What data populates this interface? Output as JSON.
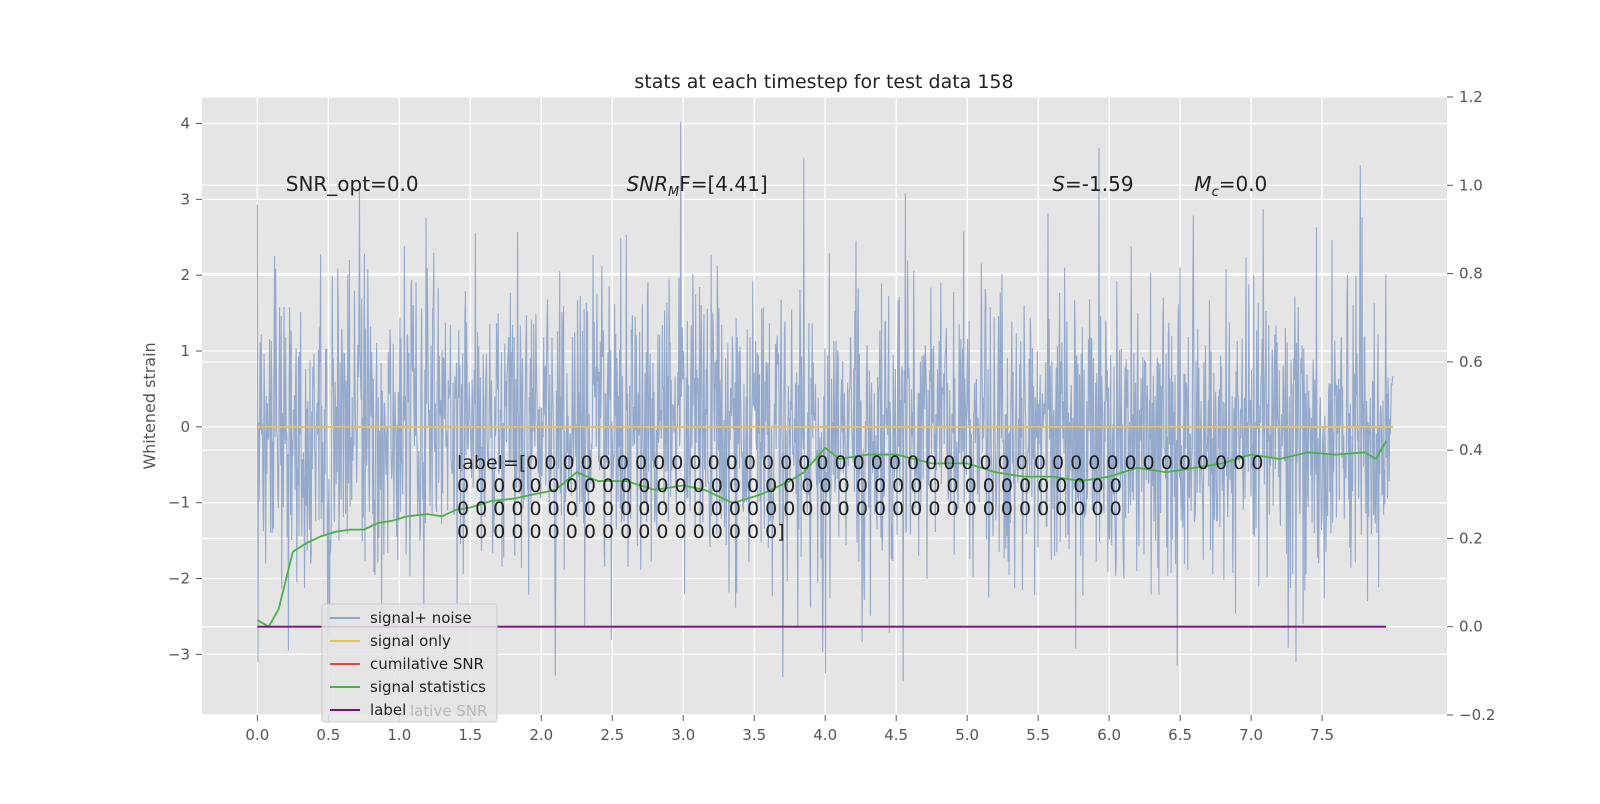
{
  "chart_data": {
    "type": "line",
    "title": "stats at each timestep for test data 158",
    "xlabel": "",
    "ylabel": "Whitened strain",
    "xlim": [
      -0.39,
      8.38
    ],
    "ylim": [
      -3.8,
      4.35
    ],
    "y2lim": [
      -0.2,
      1.2
    ],
    "xticks": [
      0.0,
      0.5,
      1.0,
      1.5,
      2.0,
      2.5,
      3.0,
      3.5,
      4.0,
      4.5,
      5.0,
      5.5,
      6.0,
      6.5,
      7.0,
      7.5
    ],
    "xtick_labels": [
      "0.0",
      "0.5",
      "1.0",
      "1.5",
      "2.0",
      "2.5",
      "3.0",
      "3.5",
      "4.0",
      "4.5",
      "5.0",
      "5.5",
      "6.0",
      "6.5",
      "7.0",
      "7.5"
    ],
    "yticks": [
      -3,
      -2,
      -1,
      0,
      1,
      2,
      3,
      4
    ],
    "ytick_labels": [
      "−3",
      "−2",
      "−1",
      "0",
      "1",
      "2",
      "3",
      "4"
    ],
    "y2ticks": [
      -0.2,
      0.0,
      0.2,
      0.4,
      0.6,
      0.8,
      1.0,
      1.2
    ],
    "y2tick_labels": [
      "−0.2",
      "0.0",
      "0.2",
      "0.4",
      "0.6",
      "0.8",
      "1.0",
      "1.2"
    ],
    "grid": true,
    "legend_position": "lower-left",
    "noise_series": {
      "name": "signal+ noise",
      "color": "#8fa5c9",
      "x_range": [
        0.0,
        8.0
      ],
      "n_points": 2048,
      "mean": 0.0,
      "std": 1.0,
      "peaks": [
        {
          "x": 0.0,
          "y": 2.93
        },
        {
          "x": 0.72,
          "y": 3.2
        },
        {
          "x": 2.98,
          "y": 4.02
        },
        {
          "x": 3.85,
          "y": 3.55
        },
        {
          "x": 5.93,
          "y": 3.68
        },
        {
          "x": 7.77,
          "y": 3.45
        },
        {
          "x": 4.55,
          "y": -3.35
        },
        {
          "x": 6.48,
          "y": -3.15
        },
        {
          "x": 4.0,
          "y": -3.25
        },
        {
          "x": 3.7,
          "y": -3.3
        },
        {
          "x": 2.1,
          "y": -3.28
        },
        {
          "x": 0.22,
          "y": -2.95
        }
      ]
    },
    "series": [
      {
        "name": "signal only",
        "color": "#e8c05a",
        "axis": "left",
        "x": [
          0.0,
          8.0
        ],
        "values": [
          0.0,
          0.0
        ]
      },
      {
        "name": "cumilative SNR",
        "color": "#e24a33",
        "axis": "right",
        "x": [],
        "values": []
      },
      {
        "name": "signal statistics",
        "color": "#4daf4a",
        "axis": "right",
        "x": [
          0.0,
          0.08,
          0.15,
          0.25,
          0.35,
          0.45,
          0.55,
          0.65,
          0.75,
          0.85,
          0.95,
          1.05,
          1.2,
          1.3,
          1.4,
          1.5,
          1.65,
          1.8,
          1.95,
          2.1,
          2.25,
          2.4,
          2.6,
          2.8,
          3.0,
          3.15,
          3.35,
          3.55,
          3.75,
          3.85,
          4.0,
          4.1,
          4.3,
          4.5,
          4.75,
          5.0,
          5.2,
          5.4,
          5.6,
          5.8,
          6.0,
          6.2,
          6.4,
          6.6,
          6.8,
          7.0,
          7.2,
          7.4,
          7.6,
          7.8,
          7.88,
          7.95
        ],
        "values": [
          0.015,
          0.0,
          0.04,
          0.17,
          0.19,
          0.205,
          0.215,
          0.22,
          0.22,
          0.235,
          0.24,
          0.25,
          0.255,
          0.25,
          0.265,
          0.27,
          0.285,
          0.29,
          0.3,
          0.31,
          0.35,
          0.33,
          0.33,
          0.31,
          0.32,
          0.31,
          0.28,
          0.3,
          0.33,
          0.35,
          0.405,
          0.38,
          0.39,
          0.39,
          0.37,
          0.37,
          0.35,
          0.34,
          0.34,
          0.33,
          0.34,
          0.36,
          0.35,
          0.36,
          0.37,
          0.39,
          0.38,
          0.395,
          0.39,
          0.395,
          0.38,
          0.42
        ]
      },
      {
        "name": "label",
        "color": "#7b0e7b",
        "axis": "right",
        "x": [
          0.0,
          7.95
        ],
        "values": [
          0.0,
          0.0
        ]
      }
    ],
    "annotations": [
      {
        "text": "SNR_opt=0.0",
        "x": 0.2,
        "y": 3.2
      },
      {
        "text": "SNR_MF=[4.41]",
        "x": 2.6,
        "y": 3.2,
        "main": "SNR",
        "sub": "M",
        "rest": "F=[4.41]"
      },
      {
        "text": "S=-1.59",
        "x": 5.6,
        "y": 3.2,
        "main": "S",
        "rest": "=-1.59"
      },
      {
        "text": "M_c=0.0",
        "x": 6.6,
        "y": 3.2,
        "main": "M",
        "sub": "c",
        "rest": "=0.0"
      }
    ],
    "label_text_lines": [
      "label=[0 0 0 0 0 0 0 0 0 0 0 0 0 0 0 0 0 0 0 0 0 0 0 0 0 0 0 0 0 0 0 0 0 0 0 0 0 0 0 0 0",
      " 0 0 0 0 0 0 0 0 0 0 0 0 0 0 0 0 0 0 0 0 0 0 0 0 0 0 0 0 0 0 0 0 0 0 0 0 0",
      " 0 0 0 0 0 0 0 0 0 0 0 0 0 0 0 0 0 0 0 0 0 0 0 0 0 0 0 0 0 0 0 0 0 0 0 0 0",
      " 0 0 0 0 0 0 0 0 0 0 0 0 0 0 0 0 0 0]"
    ],
    "legend_entries": [
      "signal+ noise",
      "signal only",
      "cumilative SNR",
      "signal statistics",
      "label"
    ],
    "legend_ghost_text": "lative SNR"
  }
}
